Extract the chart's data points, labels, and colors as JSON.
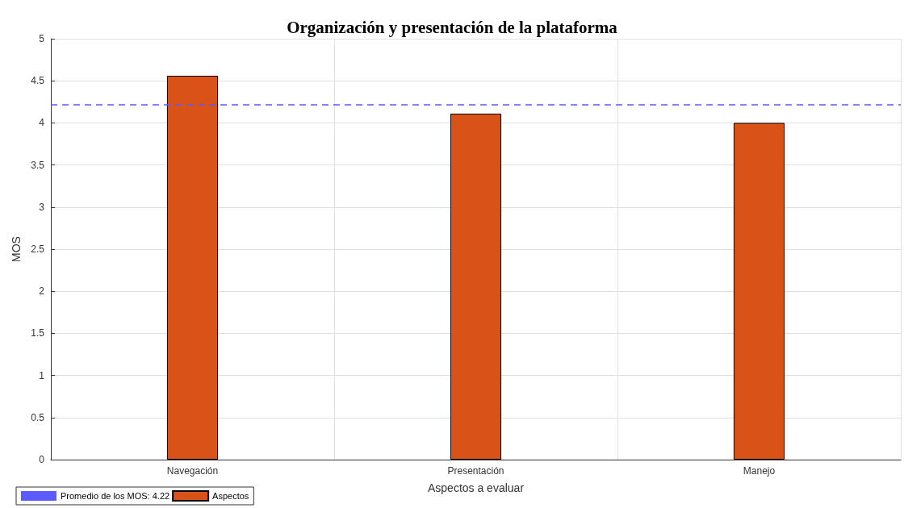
{
  "chart_data": {
    "type": "bar",
    "title": "Organización y presentación de la plataforma",
    "xlabel": "Aspectos a evaluar",
    "ylabel": "MOS",
    "categories": [
      "Navegación",
      "Presentación",
      "Manejo"
    ],
    "series": [
      {
        "name": "Aspectos",
        "color": "#d95319",
        "values": [
          4.56,
          4.11,
          4.0
        ]
      }
    ],
    "ylim": [
      0,
      5
    ],
    "yticks": [
      0,
      0.5,
      1,
      1.5,
      2,
      2.5,
      3,
      3.5,
      4,
      4.5,
      5
    ],
    "ref_lines": [
      {
        "axis": "y",
        "value": 4.22,
        "label": "Promedio de los MOS: 4.22",
        "color": "#5b5bff",
        "line_style": "dashed"
      }
    ],
    "grid": true,
    "legend": "bottom left"
  }
}
